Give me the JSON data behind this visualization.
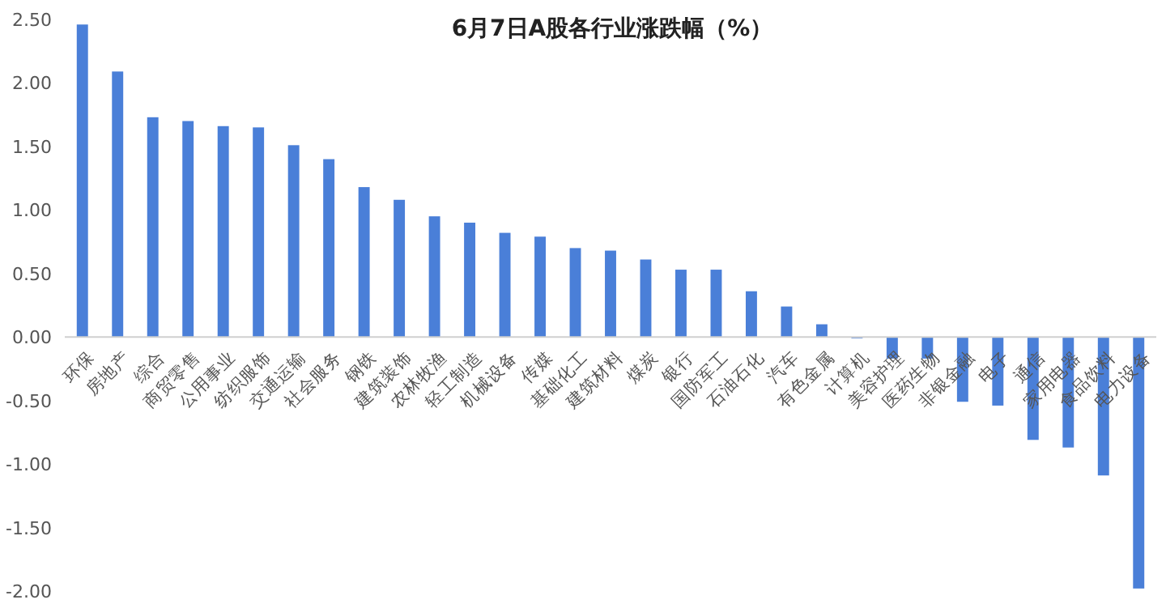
{
  "chart_data": {
    "type": "bar",
    "title": "6月7日A股各行业涨跌幅（%）",
    "categories": [
      "环保",
      "房地产",
      "综合",
      "商贸零售",
      "公用事业",
      "纺织服饰",
      "交通运输",
      "社会服务",
      "钢铁",
      "建筑装饰",
      "农林牧渔",
      "轻工制造",
      "机械设备",
      "传媒",
      "基础化工",
      "建筑材料",
      "煤炭",
      "银行",
      "国防军工",
      "石油石化",
      "汽车",
      "有色金属",
      "计算机",
      "美容护理",
      "医药生物",
      "非银金融",
      "电子",
      "通信",
      "家用电器",
      "食品饮料",
      "电力设备"
    ],
    "values": [
      2.46,
      2.09,
      1.73,
      1.7,
      1.66,
      1.65,
      1.51,
      1.4,
      1.18,
      1.08,
      0.95,
      0.9,
      0.82,
      0.79,
      0.7,
      0.68,
      0.61,
      0.53,
      0.53,
      0.36,
      0.24,
      0.1,
      -0.01,
      -0.17,
      -0.17,
      -0.51,
      -0.54,
      -0.81,
      -0.87,
      -1.09,
      -1.98
    ],
    "color": "#4a7fd8",
    "ylim": [
      -2,
      2.5
    ],
    "yticks": [
      {
        "value": -2,
        "label": "-2.00"
      },
      {
        "value": -1.5,
        "label": "-1.50"
      },
      {
        "value": -1,
        "label": "-1.00"
      },
      {
        "value": -0.5,
        "label": "-0.50"
      },
      {
        "value": 0,
        "label": "0.00"
      },
      {
        "value": 0.5,
        "label": "0.50"
      },
      {
        "value": 1,
        "label": "1.00"
      },
      {
        "value": 1.5,
        "label": "1.50"
      },
      {
        "value": 2,
        "label": "2.00"
      },
      {
        "value": 2.5,
        "label": "2.50"
      }
    ],
    "grid": false
  }
}
